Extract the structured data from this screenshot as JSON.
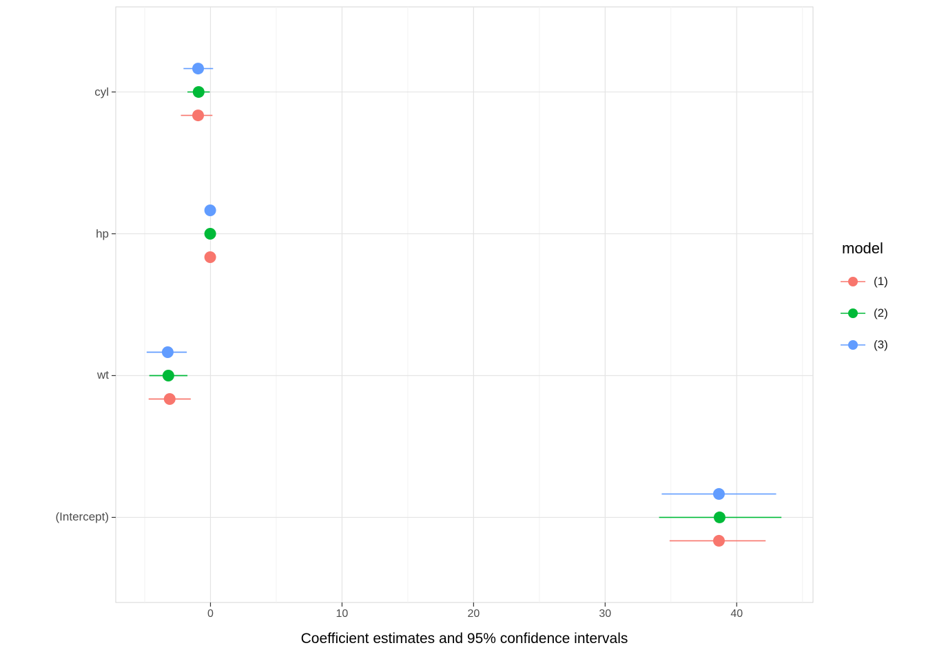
{
  "chart_data": {
    "type": "pointrange",
    "title": "",
    "xlabel": "Coefficient estimates and 95% confidence intervals",
    "legend_title": "model",
    "legend_position": "right",
    "grid": true,
    "categories": [
      "cyl",
      "hp",
      "wt",
      "(Intercept)"
    ],
    "x_ticks": [
      "0",
      "10",
      "20",
      "30",
      "40"
    ],
    "x_tick_values": [
      0,
      10,
      20,
      30,
      40
    ],
    "x_minor_values": [
      -5,
      5,
      15,
      25,
      35,
      45
    ],
    "xlim": [
      -7.2,
      45.8
    ],
    "series": [
      {
        "name": "(1)",
        "color": "#F8766D",
        "estimates": [
          -0.94,
          -0.02,
          -3.1,
          38.65
        ],
        "ci_low": [
          -2.25,
          -0.05,
          -4.7,
          34.9
        ],
        "ci_high": [
          0.15,
          0.01,
          -1.5,
          42.2
        ]
      },
      {
        "name": "(2)",
        "color": "#00BA38",
        "estimates": [
          -0.9,
          -0.02,
          -3.2,
          38.7
        ],
        "ci_low": [
          -1.75,
          -0.05,
          -4.65,
          34.1
        ],
        "ci_high": [
          -0.05,
          0.01,
          -1.75,
          43.4
        ]
      },
      {
        "name": "(3)",
        "color": "#619CFF",
        "estimates": [
          -0.94,
          -0.02,
          -3.25,
          38.65
        ],
        "ci_low": [
          -2.05,
          -0.05,
          -4.85,
          34.3
        ],
        "ci_high": [
          0.2,
          0.01,
          -1.8,
          43.0
        ]
      }
    ]
  }
}
